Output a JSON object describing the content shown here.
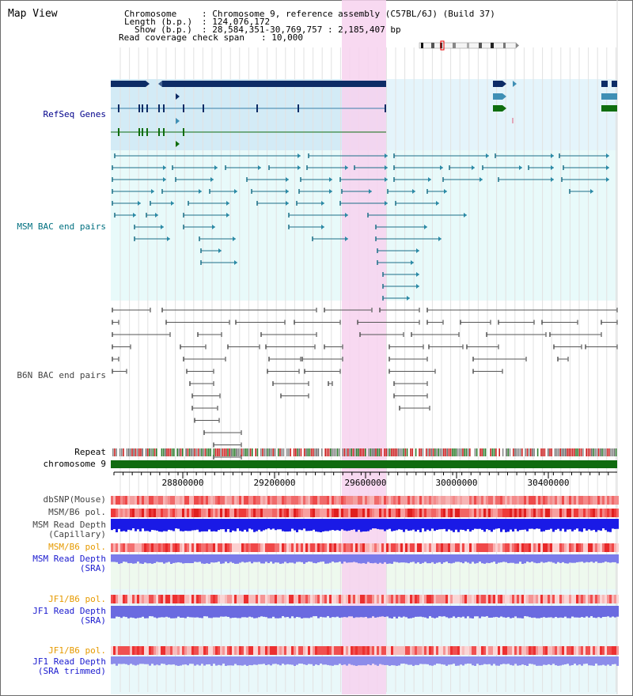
{
  "title": "Map View",
  "info": {
    "chromosome_label": "Chromosome",
    "chromosome_value": ": Chromosome 9, reference assembly (C57BL/6J) (Build 37)",
    "length_label": "Length (b.p.)",
    "length_value": ": 124,076,172",
    "show_label": "Show (b.p.)",
    "show_value": ": 28,584,351-30,769,757 : 2,185,407 bp",
    "coverage_label": "Read coverage check span",
    "coverage_value": ": 10,000"
  },
  "tracks": {
    "refseq": "RefSeq Genes",
    "msm_bac": "MSM BAC end pairs",
    "b6n_bac": "B6N BAC end pairs",
    "repeat": "Repeat",
    "chromosome": "chromosome 9",
    "dbsnp": "dbSNP(Mouse)",
    "msm_b6_pol": "MSM/B6 pol.",
    "msm_depth_cap_1": "MSM Read Depth",
    "msm_depth_cap_2": "(Capillary)",
    "msm_b6_pol_sra": "MSM/B6 pol.",
    "msm_depth_sra_1": "MSM Read Depth",
    "msm_depth_sra_2": "(SRA)",
    "jf1_b6_pol_1": "JF1/B6 pol.",
    "jf1_depth_sra_1": "JF1 Read Depth",
    "jf1_depth_sra_2": "(SRA)",
    "jf1_b6_pol_2": "JF1/B6 pol.",
    "jf1_depth_trim_1": "JF1 Read Depth",
    "jf1_depth_trim_2": "(SRA trimmed)"
  },
  "axis_ticks": [
    "28800000",
    "29200000",
    "29600000",
    "30000000",
    "30400000"
  ],
  "colors": {
    "refseq_label": "#00008b",
    "msm_label": "#007080",
    "b6n_label": "#444444",
    "orange_label": "#e69a00",
    "blue_label": "#1b1bcf",
    "highlight": "#f7d2ee",
    "gene_dark": "#0d2c66",
    "gene_mid": "#3f8fb5",
    "gene_green": "#0f6e0f",
    "chromosome_bar": "#106b10"
  }
}
